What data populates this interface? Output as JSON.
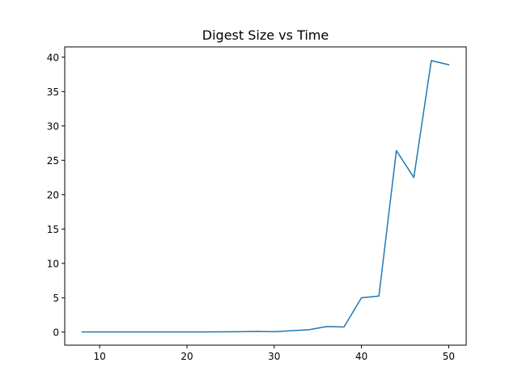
{
  "chart_data": {
    "type": "line",
    "title": "Digest Size vs Time",
    "xlabel": "",
    "ylabel": "",
    "xlim": [
      6,
      52
    ],
    "ylim": [
      -1.9,
      41.5
    ],
    "xticks": [
      10,
      20,
      30,
      40,
      50
    ],
    "yticks": [
      0,
      5,
      10,
      15,
      20,
      25,
      30,
      35,
      40
    ],
    "grid": false,
    "legend": "none",
    "series": [
      {
        "color": "#1f77b4",
        "x": [
          8,
          10,
          12,
          14,
          16,
          18,
          20,
          22,
          24,
          26,
          28,
          30,
          32,
          34,
          36,
          38,
          40,
          42,
          44,
          46,
          48,
          50
        ],
        "y": [
          0.02,
          0.02,
          0.02,
          0.02,
          0.02,
          0.02,
          0.02,
          0.03,
          0.04,
          0.05,
          0.1,
          0.05,
          0.2,
          0.35,
          0.8,
          0.75,
          5.0,
          5.25,
          26.4,
          22.5,
          39.5,
          38.9
        ]
      }
    ]
  }
}
